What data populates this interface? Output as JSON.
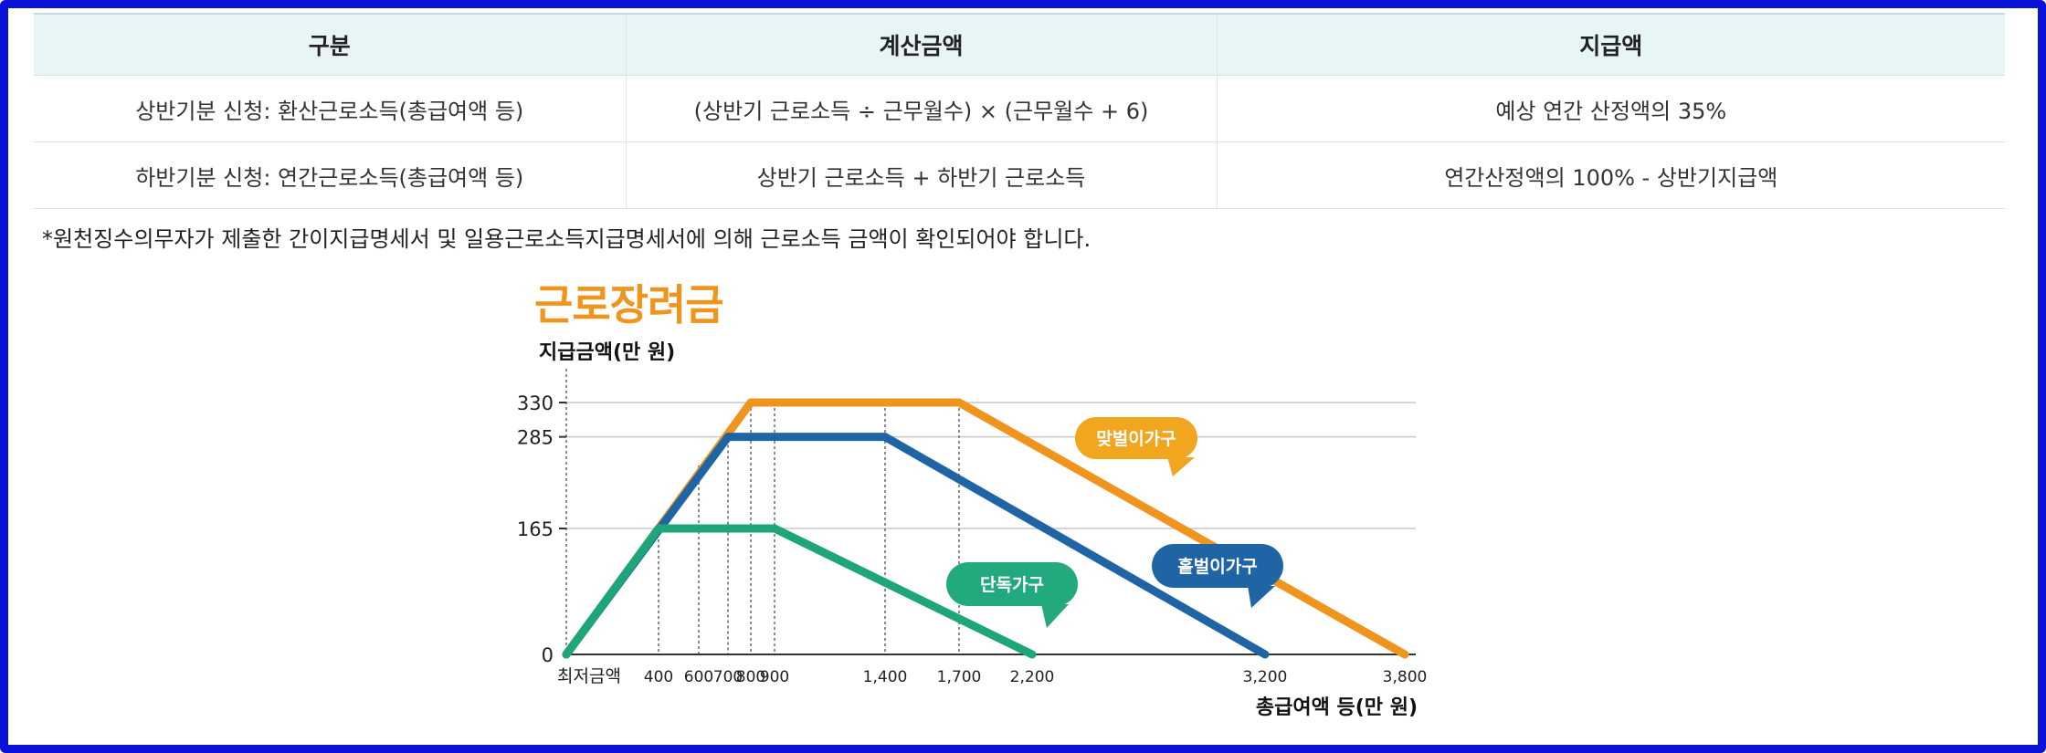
{
  "table": {
    "headers": [
      "구분",
      "계산금액",
      "지급액"
    ],
    "rows": [
      [
        "상반기분 신청: 환산근로소득(총급여액 등)",
        "(상반기 근로소득 ÷ 근무월수) × (근무월수 + 6)",
        "예상 연간 산정액의 35%"
      ],
      [
        "하반기분 신청: 연간근로소득(총급여액 등)",
        "상반기 근로소득 + 하반기 근로소득",
        "연간산정액의 100% - 상반기지급액"
      ]
    ]
  },
  "note": "*원천징수의무자가 제출한 간이지급명세서 및 일용근로소득지급명세서에 의해 근로소득 금액이 확인되어야 합니다.",
  "chart_data": {
    "type": "line",
    "title": "근로장려금",
    "ylabel": "지급금액(만 원)",
    "xlabel": "총급여액 등(만 원)",
    "x_origin_label": "최저금액",
    "x_ticks": [
      400,
      600,
      700,
      800,
      900,
      1400,
      1700,
      2200,
      3200,
      3800
    ],
    "x_tick_labels": [
      "400",
      "600",
      "700",
      "800",
      "900",
      "1,400",
      "1,700",
      "2,200",
      "3,200",
      "3,800"
    ],
    "y_ticks": [
      0,
      165,
      285,
      330
    ],
    "y_tick_labels": [
      "0",
      "165",
      "285",
      "330"
    ],
    "ylim": [
      0,
      330
    ],
    "series": [
      {
        "name": "맞벌이가구",
        "color": "#ef941d",
        "label_color": "#f2a51f",
        "x": [
          0,
          800,
          1700,
          3800
        ],
        "y": [
          0,
          330,
          330,
          0
        ]
      },
      {
        "name": "홑벌이가구",
        "color": "#1f65a6",
        "label_color": "#1f65a6",
        "x": [
          0,
          700,
          1400,
          3200
        ],
        "y": [
          0,
          285,
          285,
          0
        ]
      },
      {
        "name": "단독가구",
        "color": "#1fa57a",
        "label_color": "#22aa7e",
        "x": [
          0,
          400,
          900,
          2200
        ],
        "y": [
          0,
          165,
          165,
          0
        ]
      }
    ]
  }
}
